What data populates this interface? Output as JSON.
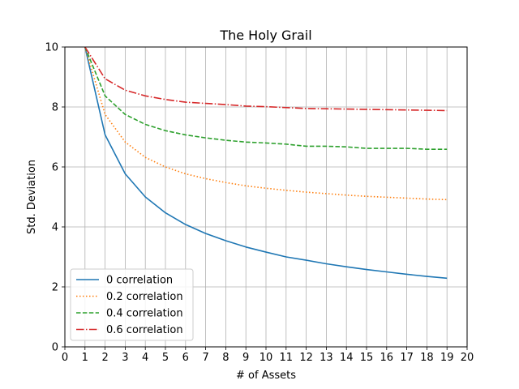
{
  "chart_data": {
    "type": "line",
    "title": "The Holy Grail",
    "xlabel": "# of Assets",
    "ylabel": "Std. Deviation",
    "xlim": [
      0,
      20
    ],
    "ylim": [
      0,
      10
    ],
    "xticks": [
      0,
      1,
      2,
      3,
      4,
      5,
      6,
      7,
      8,
      9,
      10,
      11,
      12,
      13,
      14,
      15,
      16,
      17,
      18,
      19,
      20
    ],
    "yticks": [
      0,
      2,
      4,
      6,
      8,
      10
    ],
    "grid": "vertical",
    "legend_position": "lower-left",
    "x": [
      1,
      2,
      3,
      4,
      5,
      6,
      7,
      8,
      9,
      10,
      11,
      12,
      13,
      14,
      15,
      16,
      17,
      18,
      19
    ],
    "series": [
      {
        "name": "0 correlation",
        "color": "#1f77b4",
        "style": "solid",
        "values": [
          10.0,
          7.07,
          5.77,
          5.0,
          4.47,
          4.08,
          3.78,
          3.54,
          3.33,
          3.16,
          3.0,
          2.89,
          2.77,
          2.67,
          2.58,
          2.5,
          2.42,
          2.35,
          2.29
        ]
      },
      {
        "name": "0.2 correlation",
        "color": "#ff7f0e",
        "style": "dotted",
        "values": [
          10.0,
          7.75,
          6.83,
          6.32,
          6.0,
          5.77,
          5.61,
          5.48,
          5.37,
          5.29,
          5.22,
          5.16,
          5.11,
          5.06,
          5.02,
          4.99,
          4.96,
          4.93,
          4.91
        ]
      },
      {
        "name": "0.4 correlation",
        "color": "#2ca02c",
        "style": "dashed",
        "values": [
          10.0,
          8.37,
          7.75,
          7.42,
          7.21,
          7.07,
          6.97,
          6.89,
          6.83,
          6.8,
          6.76,
          6.69,
          6.69,
          6.67,
          6.62,
          6.62,
          6.62,
          6.59,
          6.59
        ]
      },
      {
        "name": "0.6 correlation",
        "color": "#d62728",
        "style": "dashdot",
        "values": [
          10.0,
          8.94,
          8.56,
          8.37,
          8.25,
          8.16,
          8.12,
          8.08,
          8.03,
          8.01,
          7.98,
          7.95,
          7.94,
          7.93,
          7.92,
          7.91,
          7.9,
          7.89,
          7.88
        ]
      }
    ]
  }
}
